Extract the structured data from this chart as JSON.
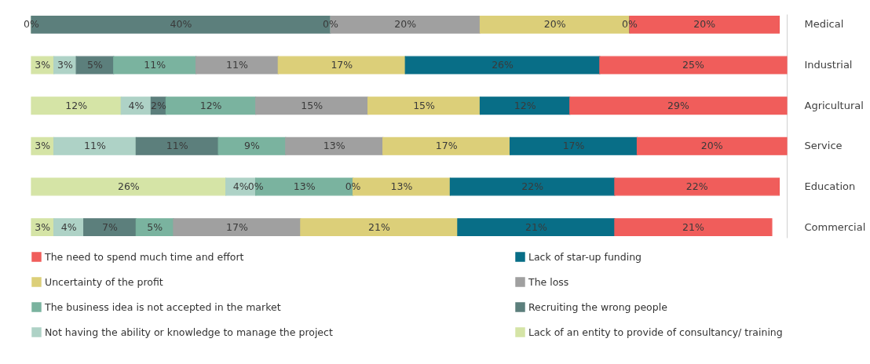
{
  "chart_data": {
    "type": "bar",
    "orientation": "horizontal",
    "stacked": true,
    "legend": "bottom",
    "grid": false,
    "categories": [
      "Medical",
      "Industrial",
      "Agricultural",
      "Service",
      "Education",
      "Commercial"
    ],
    "series": [
      {
        "name": "Lack of an entity to provide of  consultancy/ training",
        "color": "#d5e4a6",
        "values": [
          0,
          3,
          12,
          3,
          26,
          3
        ],
        "value_labels": [
          "0%",
          "3%",
          "12%",
          "3%",
          "26%",
          "3%"
        ]
      },
      {
        "name": "Not having the ability or knowledge to manage the project",
        "color": "#aed2c6",
        "values": [
          0,
          3,
          4,
          11,
          4,
          4
        ],
        "value_labels": [
          null,
          "3%",
          "4%",
          "11%",
          "4%",
          "4%"
        ]
      },
      {
        "name": "Recruiting the wrong people",
        "color": "#5c7f7c",
        "values": [
          40,
          5,
          2,
          11,
          0,
          7
        ],
        "value_labels": [
          "40%",
          "5%",
          "2%",
          "11%",
          "0%",
          "7%"
        ]
      },
      {
        "name": "The business idea is not accepted in the market",
        "color": "#7ab39f",
        "values": [
          0,
          11,
          12,
          9,
          13,
          5
        ],
        "value_labels": [
          "0%",
          "11%",
          "12%",
          "9%",
          "13%",
          "5%"
        ]
      },
      {
        "name": "The loss",
        "color": "#a0a0a0",
        "values": [
          20,
          11,
          15,
          13,
          0,
          17
        ],
        "value_labels": [
          "20%",
          "11%",
          "15%",
          "13%",
          "0%",
          "17%"
        ]
      },
      {
        "name": "Uncertainty of the profit",
        "color": "#dccf79",
        "values": [
          20,
          17,
          15,
          17,
          13,
          21
        ],
        "value_labels": [
          "20%",
          "17%",
          "15%",
          "17%",
          "13%",
          "21%"
        ]
      },
      {
        "name": "Lack of star-up funding",
        "color": "#086e87",
        "values": [
          0,
          26,
          12,
          17,
          22,
          21
        ],
        "value_labels": [
          "0%",
          "26%",
          "12%",
          "17%",
          "22%",
          "21%"
        ]
      },
      {
        "name": "The need to spend much time and effort",
        "color": "#f05d5b",
        "values": [
          20,
          25,
          29,
          20,
          22,
          21
        ],
        "value_labels": [
          "20%",
          "25%",
          "29%",
          "20%",
          "22%",
          "21%"
        ]
      }
    ]
  }
}
